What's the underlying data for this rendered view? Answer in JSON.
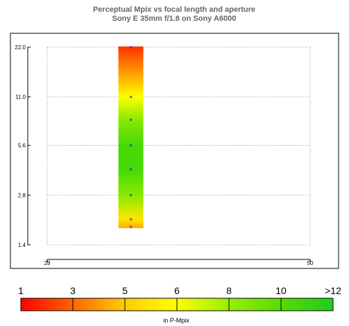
{
  "chart_data": {
    "type": "heatmap",
    "title": "Perceptual Mpix vs focal length and aperture",
    "subtitle": "Sony E 35mm f/1.8 on Sony A6000",
    "x_axis": {
      "scale": "linear",
      "range": [
        28,
        50
      ],
      "ticks": [
        "28",
        "50"
      ]
    },
    "y_axis": {
      "scale": "log2",
      "range": [
        1.4,
        22.0
      ],
      "ticks": [
        "1.4",
        "2.8",
        "5.6",
        "11.0",
        "22.0"
      ]
    },
    "grid": true,
    "focal_length": 35,
    "samples": [
      {
        "aperture": 1.8,
        "pmpix": 4.5
      },
      {
        "aperture": 2.0,
        "pmpix": 5.5
      },
      {
        "aperture": 2.8,
        "pmpix": 8.5
      },
      {
        "aperture": 4.0,
        "pmpix": 10.5
      },
      {
        "aperture": 5.6,
        "pmpix": 10.5
      },
      {
        "aperture": 8.0,
        "pmpix": 8.5
      },
      {
        "aperture": 11.0,
        "pmpix": 6.0
      },
      {
        "aperture": 22.0,
        "pmpix": 2.0
      }
    ],
    "colorbar": {
      "label": "in P-Mpix",
      "ticks": [
        "1",
        "3",
        "5",
        "6",
        "8",
        "10",
        ">12"
      ],
      "stops": [
        {
          "value": 1,
          "color": "#ff0000"
        },
        {
          "value": 3,
          "color": "#ff6600"
        },
        {
          "value": 5,
          "color": "#ffcc00"
        },
        {
          "value": 6,
          "color": "#ffff00"
        },
        {
          "value": 8,
          "color": "#99ee00"
        },
        {
          "value": 10,
          "color": "#55dd00"
        },
        {
          "value": 12,
          "color": "#22cc22"
        }
      ]
    }
  }
}
